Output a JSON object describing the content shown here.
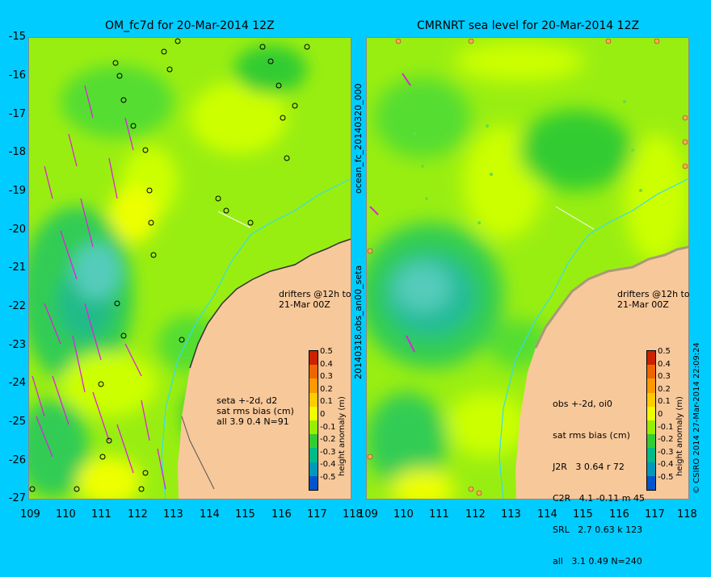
{
  "left_panel": {
    "title": "OM_fc7d for 20-Mar-2014 12Z",
    "drifters_label_1": "drifters @12h to",
    "drifters_label_2": "21-Mar 00Z",
    "stats": [
      "seta +-2d, d2",
      "sat rms bias (cm)",
      "all 3.9 0.4 N=91"
    ]
  },
  "right_panel": {
    "title": "CMRNRT sea level  for 20-Mar-2014 12Z",
    "drifters_label_1": "drifters @12h to",
    "drifters_label_2": "21-Mar 00Z",
    "stats": [
      "obs +-2d, oi0",
      "sat rms bias (cm)",
      "J2R   3 0.64 r 72",
      "C2R   4.1 -0.11 m 45",
      "SRL   2.7 0.63 k 123",
      "all   3.1 0.49 N=240"
    ]
  },
  "vertical_labels": {
    "middle_top": "ocean_fc_20140320_000",
    "middle_bottom": "20140318.obs_an00_seta",
    "right_edge": "© CSIRO 2014   27-Mar-2014 22:09:24"
  },
  "colorbar": {
    "label": "height anomaly (m)",
    "ticks": [
      "0.5",
      "0.4",
      "0.3",
      "0.2",
      "0.1",
      "0",
      "-0.1",
      "-0.2",
      "-0.3",
      "-0.4",
      "-0.5"
    ],
    "colors": [
      "#cc2200",
      "#ee6600",
      "#ff9900",
      "#ffcc00",
      "#eeff00",
      "#99ee00",
      "#33cc33",
      "#00bb88",
      "#0099bb",
      "#0055cc",
      "#002288"
    ]
  },
  "y_ticks": [
    "-15",
    "-16",
    "-17",
    "-18",
    "-19",
    "-20",
    "-21",
    "-22",
    "-23",
    "-24",
    "-25",
    "-26",
    "-27"
  ],
  "x_ticks_left": [
    "109",
    "110",
    "111",
    "112",
    "113",
    "114",
    "115",
    "116",
    "117",
    "118"
  ],
  "x_ticks_right": [
    "109",
    "110",
    "111",
    "112",
    "113",
    "114",
    "115",
    "116",
    "117",
    "118"
  ],
  "colors": {
    "background": "#00ccff",
    "land": "#f7c89a",
    "drifter": "#dd22dd",
    "ocean_base": "#99ee11"
  }
}
